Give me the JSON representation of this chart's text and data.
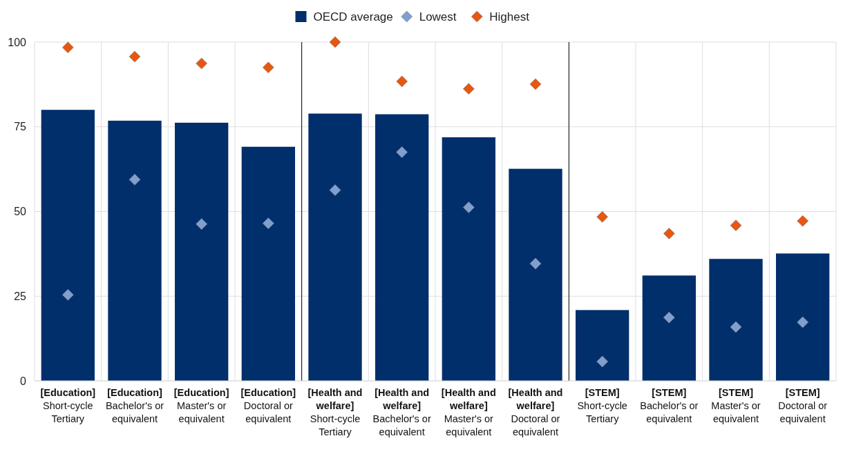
{
  "chart_data": {
    "type": "bar",
    "categories": [
      "[Education] Short-cycle Tertiary",
      "[Education] Bachelor's or equivalent",
      "[Education] Master's or equivalent",
      "[Education] Doctoral or equivalent",
      "[Health and welfare] Short-cycle Tertiary",
      "[Health and welfare] Bachelor's or equivalent",
      "[Health and welfare] Master's or equivalent",
      "[Health and welfare] Doctoral or equivalent",
      "[STEM] Short-cycle Tertiary",
      "[STEM] Bachelor's or equivalent",
      "[STEM] Master's or equivalent",
      "[STEM] Doctoral or equivalent"
    ],
    "series": [
      {
        "name": "OECD average",
        "color": "#002f6c",
        "values": [
          80,
          76.8,
          76.2,
          69.1,
          78.9,
          78.7,
          71.9,
          62.6,
          20.9,
          31.1,
          36,
          37.6
        ]
      },
      {
        "name": "Lowest",
        "type": "scatter",
        "marker": "diamond",
        "color": "#7f9fd0",
        "values": [
          25.4,
          59.4,
          46.3,
          46.5,
          56.3,
          67.5,
          51.2,
          34.6,
          5.7,
          18.7,
          15.9,
          17.3
        ]
      },
      {
        "name": "Highest",
        "type": "scatter",
        "marker": "diamond",
        "color": "#e8560f",
        "values": [
          98.4,
          95.7,
          93.7,
          92.5,
          100,
          88.4,
          86.2,
          87.6,
          48.4,
          43.5,
          45.9,
          47.2
        ]
      }
    ],
    "ylim": [
      0,
      100
    ],
    "yticks": [
      0,
      25,
      50,
      75,
      100
    ],
    "grid": true,
    "legend": "top"
  }
}
